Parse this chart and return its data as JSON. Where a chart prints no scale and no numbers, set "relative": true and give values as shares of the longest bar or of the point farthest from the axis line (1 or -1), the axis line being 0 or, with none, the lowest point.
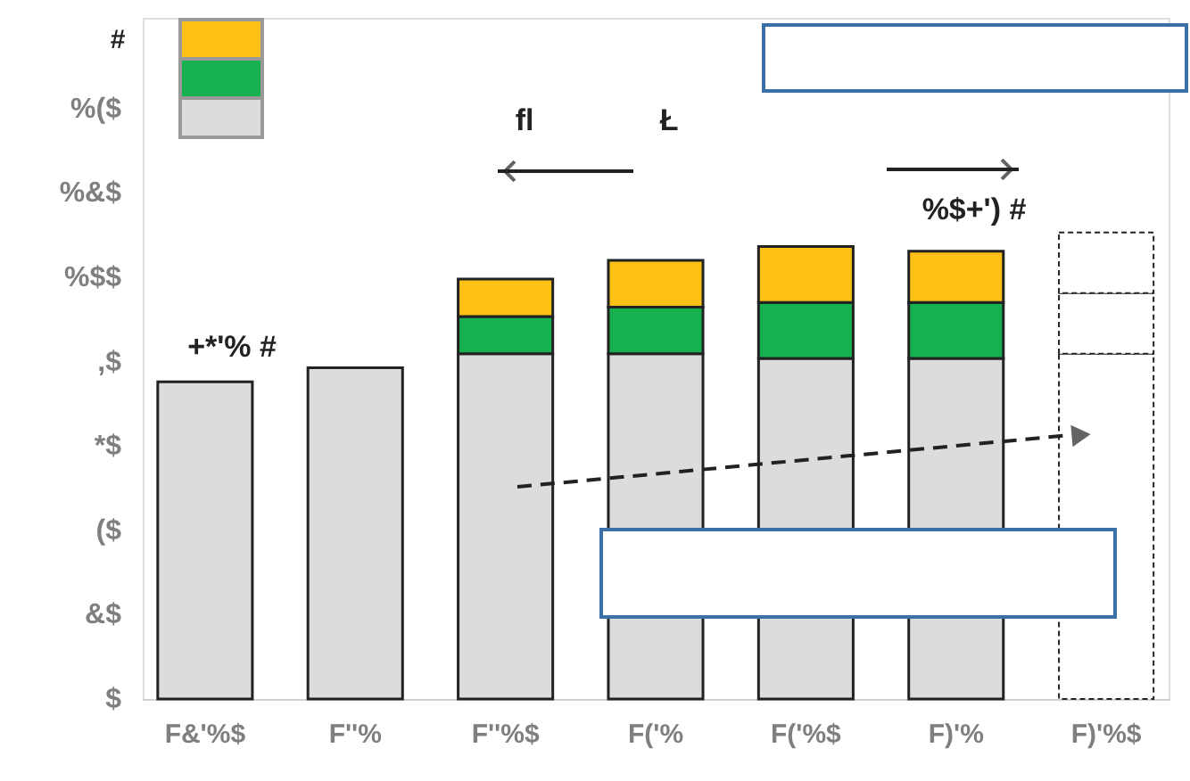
{
  "chart_data": {
    "type": "bar",
    "stacked": true,
    "relative": true,
    "categories": [
      "F&'%$",
      "F''%",
      "F''%$",
      "F('%",
      "F('%$",
      "F)'%",
      "F)'%$"
    ],
    "series": [
      {
        "color": "#dcdcdc",
        "values": [
          0.68,
          0.71,
          0.74,
          0.74,
          0.73,
          0.73,
          null
        ]
      },
      {
        "color": "#16b04e",
        "values": [
          null,
          null,
          0.08,
          0.1,
          0.12,
          0.12,
          null
        ]
      },
      {
        "name": "#",
        "color": "#fdc014",
        "values": [
          null,
          null,
          0.08,
          0.1,
          0.12,
          0.11,
          null
        ]
      },
      {
        "color": "#ffffff",
        "line_style": "dashed",
        "values": [
          null,
          null,
          null,
          null,
          null,
          null,
          0.74
        ]
      },
      {
        "color": "#ffffff",
        "line_style": "dashed",
        "values": [
          null,
          null,
          null,
          null,
          null,
          null,
          0.13
        ]
      },
      {
        "color": "#ffffff",
        "line_style": "dashed",
        "values": [
          null,
          null,
          null,
          null,
          null,
          null,
          0.13
        ]
      }
    ],
    "grid": false,
    "legend": "top left",
    "annotations": [
      "$",
      "&$",
      "($",
      "*$",
      ",$",
      "%$$",
      "%&$",
      "%($",
      "fl",
      "Ł",
      "+*'%  #",
      "%$+')   #"
    ]
  }
}
